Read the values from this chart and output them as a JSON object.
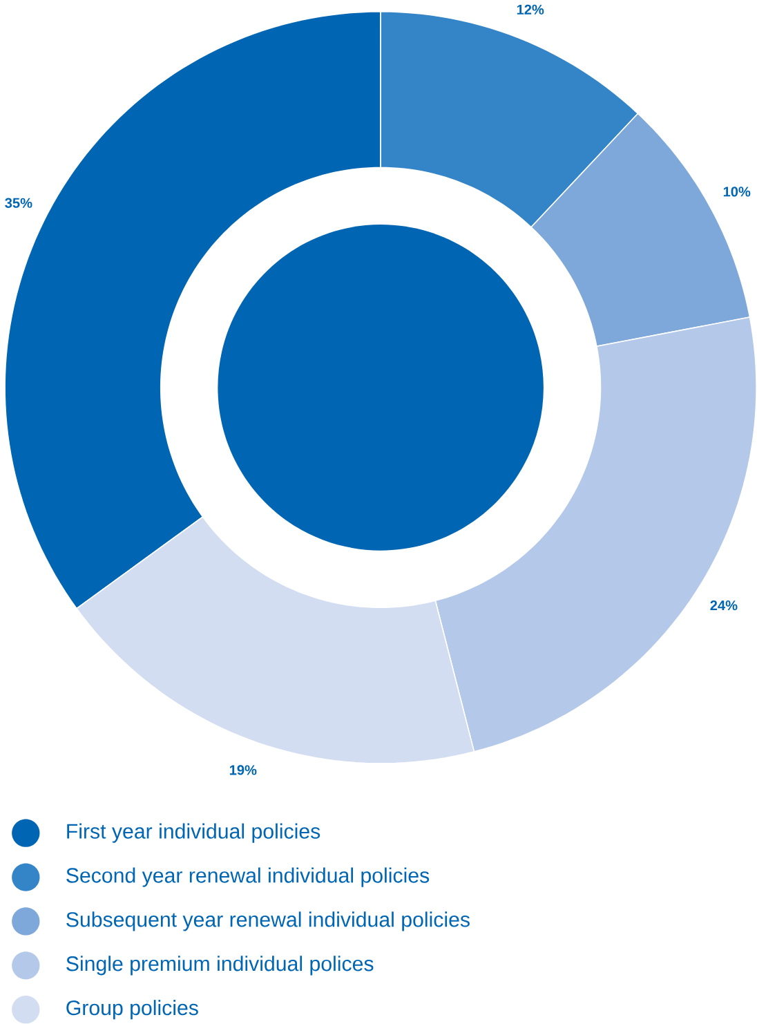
{
  "chart_data": {
    "type": "donut",
    "categories": [
      "First year individual policies",
      "Second year renewal individual policies",
      "Subsequent year renewal individual policies",
      "Single premium individual polices",
      "Group policies"
    ],
    "values": [
      35,
      12,
      10,
      24,
      19
    ],
    "colors": [
      "#0066b3",
      "#3385c8",
      "#7ea7da",
      "#b4c8e9",
      "#d3ddf2"
    ],
    "value_labels": [
      "35%",
      "12%",
      "10%",
      "24%",
      "19%"
    ],
    "legend": "bottom"
  }
}
